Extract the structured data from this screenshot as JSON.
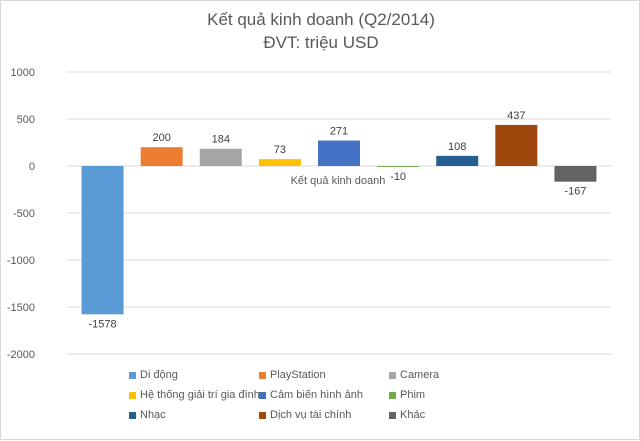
{
  "chart_data": {
    "type": "bar",
    "title": "Kết quả kinh doanh (Q2/2014)",
    "subtitle": "ĐVT: triệu USD",
    "categories": [
      "Kết quả kinh doanh"
    ],
    "series": [
      {
        "name": "Di động",
        "value": -1578,
        "color": "#5b9bd5"
      },
      {
        "name": "PlayStation",
        "value": 200,
        "color": "#ed7d31"
      },
      {
        "name": "Camera",
        "value": 184,
        "color": "#a5a5a5"
      },
      {
        "name": "Hệ thống giải trí gia đình",
        "value": 73,
        "color": "#ffc000"
      },
      {
        "name": "Cảm biến hình ảnh",
        "value": 271,
        "color": "#4472c4"
      },
      {
        "name": "Phim",
        "value": -10,
        "color": "#70ad47"
      },
      {
        "name": "Nhạc",
        "value": 108,
        "color": "#255e91"
      },
      {
        "name": "Dịch vụ tài chính",
        "value": 437,
        "color": "#9e480e"
      },
      {
        "name": "Khác",
        "value": -167,
        "color": "#636363"
      }
    ],
    "ylim": [
      -2000,
      1000
    ],
    "yticks": [
      1000,
      500,
      0,
      -500,
      -1000,
      -1500,
      -2000
    ],
    "grid": true,
    "legend_position": "bottom"
  }
}
